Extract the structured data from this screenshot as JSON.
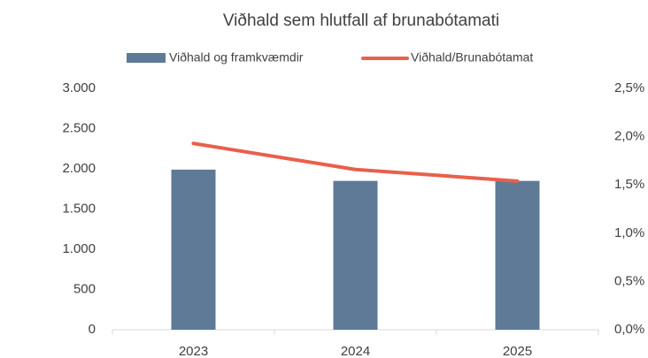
{
  "chart_data": {
    "type": "combo",
    "title": "Viðhald sem hlutfall af brunabótamati",
    "categories": [
      "2023",
      "2024",
      "2025"
    ],
    "series": [
      {
        "name": "Viðhald og framkvæmdir",
        "type": "bar",
        "color": "#5f7a96",
        "values": [
          1990,
          1850,
          1850
        ]
      },
      {
        "name": "Viðhald/Brunabótamat",
        "type": "line",
        "axis": "y2",
        "color": "#e8604c",
        "values": [
          1.93,
          1.66,
          1.54
        ]
      }
    ],
    "ylim": [
      0,
      3000
    ],
    "yticks": [
      0,
      500,
      {
        "value": 1000,
        "label": "1.000"
      },
      {
        "value": 1500,
        "label": "1.500"
      },
      {
        "value": 2000,
        "label": "2.000"
      },
      {
        "value": 2500,
        "label": "2.500"
      },
      {
        "value": 3000,
        "label": "3.000"
      }
    ],
    "y2lim": [
      0,
      2.5
    ],
    "y2ticks": [
      {
        "value": 0,
        "label": "0,0%"
      },
      {
        "value": 0.5,
        "label": "0,5%"
      },
      {
        "value": 1,
        "label": "1,0%"
      },
      {
        "value": 1.5,
        "label": "1,5%"
      },
      {
        "value": 2,
        "label": "2,0%"
      },
      {
        "value": 2.5,
        "label": "2,5%"
      }
    ],
    "grid": false,
    "legend": "top"
  }
}
